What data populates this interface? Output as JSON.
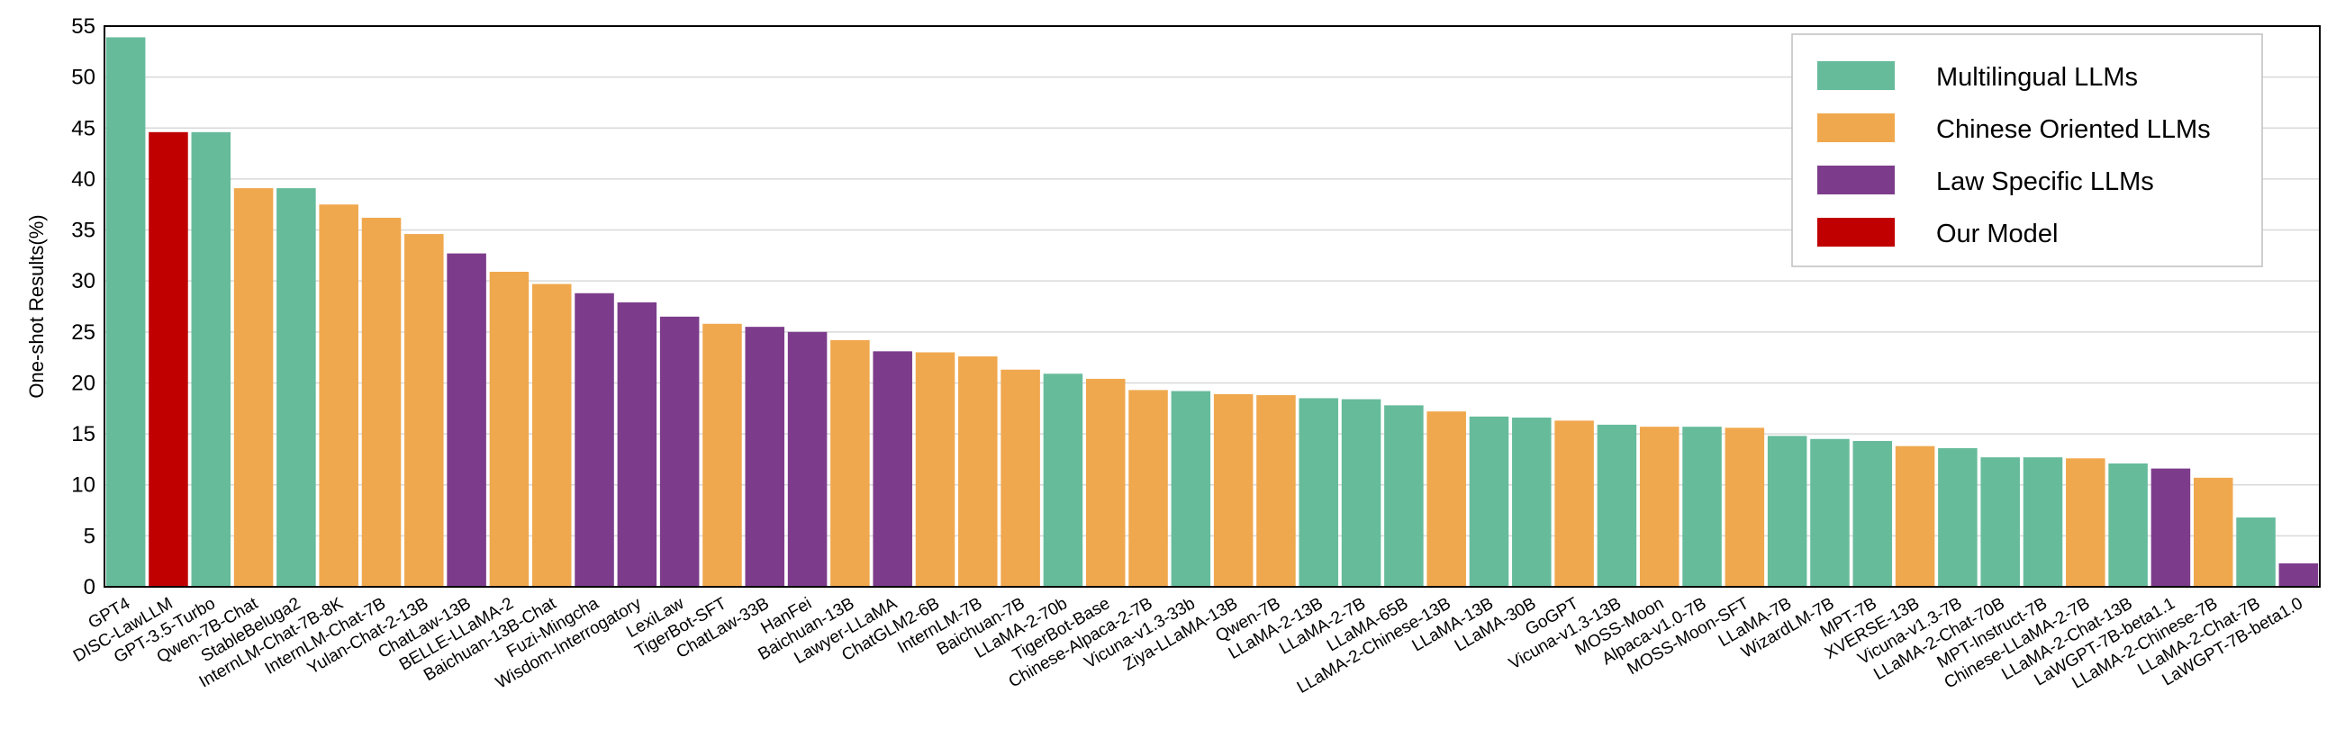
{
  "colors": {
    "multilingual": "#66BB9B",
    "chinese": "#F0A84E",
    "law": "#7D3C8B",
    "ours": "#C00000",
    "grid": "#D9D9D9"
  },
  "legend": [
    {
      "label": "Multilingual LLMs",
      "group": "multilingual"
    },
    {
      "label": "Chinese Oriented LLMs",
      "group": "chinese"
    },
    {
      "label": "Law Specific LLMs",
      "group": "law"
    },
    {
      "label": "Our Model",
      "group": "ours"
    }
  ],
  "chart_data": {
    "type": "bar",
    "title": "",
    "xlabel": "",
    "ylabel": "One-shot  Results(%)",
    "ylim": [
      0,
      55
    ],
    "yticks": [
      0,
      5,
      10,
      15,
      20,
      25,
      30,
      35,
      40,
      45,
      50,
      55
    ],
    "grid": true,
    "legend_position": "top-right",
    "bars": [
      {
        "name": "GPT4",
        "value": 53.9,
        "group": "multilingual"
      },
      {
        "name": "DISC-LawLLM",
        "value": 44.6,
        "group": "ours"
      },
      {
        "name": "GPT-3.5-Turbo",
        "value": 44.6,
        "group": "multilingual"
      },
      {
        "name": "Qwen-7B-Chat",
        "value": 39.1,
        "group": "chinese"
      },
      {
        "name": "StableBeluga2",
        "value": 39.1,
        "group": "multilingual"
      },
      {
        "name": "InternLM-Chat-7B-8K",
        "value": 37.5,
        "group": "chinese"
      },
      {
        "name": "InternLM-Chat-7B",
        "value": 36.2,
        "group": "chinese"
      },
      {
        "name": "Yulan-Chat-2-13B",
        "value": 34.6,
        "group": "chinese"
      },
      {
        "name": "ChatLaw-13B",
        "value": 32.7,
        "group": "law"
      },
      {
        "name": "BELLE-LLaMA-2",
        "value": 30.9,
        "group": "chinese"
      },
      {
        "name": "Baichuan-13B-Chat",
        "value": 29.7,
        "group": "chinese"
      },
      {
        "name": "Fuzi-Mingcha",
        "value": 28.8,
        "group": "law"
      },
      {
        "name": "Wisdom-Interrogatory",
        "value": 27.9,
        "group": "law"
      },
      {
        "name": "LexiLaw",
        "value": 26.5,
        "group": "law"
      },
      {
        "name": "TigerBot-SFT",
        "value": 25.8,
        "group": "chinese"
      },
      {
        "name": "ChatLaw-33B",
        "value": 25.5,
        "group": "law"
      },
      {
        "name": "HanFei",
        "value": 25.0,
        "group": "law"
      },
      {
        "name": "Baichuan-13B",
        "value": 24.2,
        "group": "chinese"
      },
      {
        "name": "Lawyer-LLaMA",
        "value": 23.1,
        "group": "law"
      },
      {
        "name": "ChatGLM2-6B",
        "value": 23.0,
        "group": "chinese"
      },
      {
        "name": "InternLM-7B",
        "value": 22.6,
        "group": "chinese"
      },
      {
        "name": "Baichuan-7B",
        "value": 21.3,
        "group": "chinese"
      },
      {
        "name": "LLaMA-2-70b",
        "value": 20.9,
        "group": "multilingual"
      },
      {
        "name": "TigerBot-Base",
        "value": 20.4,
        "group": "chinese"
      },
      {
        "name": "Chinese-Alpaca-2-7B",
        "value": 19.3,
        "group": "chinese"
      },
      {
        "name": "Vicuna-v1.3-33b",
        "value": 19.2,
        "group": "multilingual"
      },
      {
        "name": "Ziya-LLaMA-13B",
        "value": 18.9,
        "group": "chinese"
      },
      {
        "name": "Qwen-7B",
        "value": 18.8,
        "group": "chinese"
      },
      {
        "name": "LLaMA-2-13B",
        "value": 18.5,
        "group": "multilingual"
      },
      {
        "name": "LLaMA-2-7B",
        "value": 18.4,
        "group": "multilingual"
      },
      {
        "name": "LLaMA-65B",
        "value": 17.8,
        "group": "multilingual"
      },
      {
        "name": "LLaMA-2-Chinese-13B",
        "value": 17.2,
        "group": "chinese"
      },
      {
        "name": "LLaMA-13B",
        "value": 16.7,
        "group": "multilingual"
      },
      {
        "name": "LLaMA-30B",
        "value": 16.6,
        "group": "multilingual"
      },
      {
        "name": "GoGPT",
        "value": 16.3,
        "group": "chinese"
      },
      {
        "name": "Vicuna-v1.3-13B",
        "value": 15.9,
        "group": "multilingual"
      },
      {
        "name": "MOSS-Moon",
        "value": 15.7,
        "group": "chinese"
      },
      {
        "name": "Alpaca-v1.0-7B",
        "value": 15.7,
        "group": "multilingual"
      },
      {
        "name": "MOSS-Moon-SFT",
        "value": 15.6,
        "group": "chinese"
      },
      {
        "name": "LLaMA-7B",
        "value": 14.8,
        "group": "multilingual"
      },
      {
        "name": "WizardLM-7B",
        "value": 14.5,
        "group": "multilingual"
      },
      {
        "name": "MPT-7B",
        "value": 14.3,
        "group": "multilingual"
      },
      {
        "name": "XVERSE-13B",
        "value": 13.8,
        "group": "chinese"
      },
      {
        "name": "Vicuna-v1.3-7B",
        "value": 13.6,
        "group": "multilingual"
      },
      {
        "name": "LLaMA-2-Chat-70B",
        "value": 12.7,
        "group": "multilingual"
      },
      {
        "name": "MPT-Instruct-7B",
        "value": 12.7,
        "group": "multilingual"
      },
      {
        "name": "Chinese-LLaMA-2-7B",
        "value": 12.6,
        "group": "chinese"
      },
      {
        "name": "LLaMA-2-Chat-13B",
        "value": 12.1,
        "group": "multilingual"
      },
      {
        "name": "LaWGPT-7B-beta1.1",
        "value": 11.6,
        "group": "law"
      },
      {
        "name": "LLaMA-2-Chinese-7B",
        "value": 10.7,
        "group": "chinese"
      },
      {
        "name": "LLaMA-2-Chat-7B",
        "value": 6.8,
        "group": "multilingual"
      },
      {
        "name": "LaWGPT-7B-beta1.0",
        "value": 2.3,
        "group": "law"
      }
    ]
  }
}
